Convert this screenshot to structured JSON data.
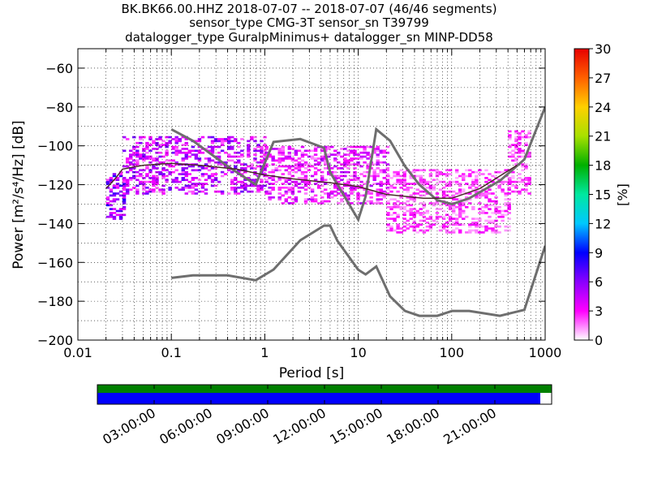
{
  "chart_data": {
    "type": "heatmap",
    "title_lines": [
      "BK.BK66.00.HHZ   2018-07-07 -- 2018-07-07  (46/46 segments)",
      "sensor_type CMG-3T sensor_sn T39799",
      "datalogger_type GuralpMinimus+ datalogger_sn MINP-DD58"
    ],
    "xlabel": "Period [s]",
    "ylabel": "Power [m²/s⁴/Hz] [dB]",
    "x_scale": "log",
    "xlim": [
      0.01,
      1000
    ],
    "ylim": [
      -200,
      -50
    ],
    "x_ticks": [
      {
        "value": 0.01,
        "label": "0.01"
      },
      {
        "value": 0.1,
        "label": "0.1"
      },
      {
        "value": 1,
        "label": "1"
      },
      {
        "value": 10,
        "label": "10"
      },
      {
        "value": 100,
        "label": "100"
      },
      {
        "value": 1000,
        "label": "1000"
      }
    ],
    "y_ticks": [
      -60,
      -80,
      -100,
      -120,
      -140,
      -160,
      -180,
      -200
    ],
    "grid": true,
    "colorbar": {
      "label": "[%]",
      "range": [
        0,
        30
      ],
      "ticks": [
        0,
        3,
        6,
        9,
        12,
        15,
        18,
        21,
        24,
        27,
        30
      ],
      "colors": [
        "#ffffff",
        "#ff00ff",
        "#8a00ff",
        "#0000ff",
        "#00c8ff",
        "#00e8a0",
        "#00b000",
        "#a8e000",
        "#ffd000",
        "#ff6000",
        "#e80000"
      ]
    },
    "models": [
      {
        "name": "high noise model",
        "points": [
          [
            0.1,
            -91.5
          ],
          [
            0.17,
            -97.4
          ],
          [
            0.4,
            -110.5
          ],
          [
            0.8,
            -120
          ],
          [
            1.24,
            -98
          ],
          [
            2.4,
            -96.5
          ],
          [
            4.3,
            -101
          ],
          [
            5,
            -113.5
          ],
          [
            6,
            -120
          ],
          [
            10,
            -138
          ],
          [
            12,
            -126
          ],
          [
            15.6,
            -91.5
          ],
          [
            21.9,
            -97.4
          ],
          [
            31.6,
            -110.5
          ],
          [
            45,
            -120
          ],
          [
            70,
            -128
          ],
          [
            101,
            -130
          ],
          [
            154,
            -127
          ],
          [
            328,
            -118
          ],
          [
            600,
            -107
          ],
          [
            10000,
            -80
          ]
        ]
      },
      {
        "name": "low noise model",
        "points": [
          [
            0.1,
            -168
          ],
          [
            0.17,
            -166.7
          ],
          [
            0.4,
            -166.7
          ],
          [
            0.8,
            -169.2
          ],
          [
            1.24,
            -163.7
          ],
          [
            2.4,
            -148.6
          ],
          [
            4.3,
            -141.1
          ],
          [
            5,
            -141.1
          ],
          [
            6,
            -149
          ],
          [
            10,
            -163.8
          ],
          [
            12,
            -166.2
          ],
          [
            15.6,
            -162.1
          ],
          [
            21.9,
            -177.5
          ],
          [
            31.6,
            -185
          ],
          [
            45,
            -187.5
          ],
          [
            70,
            -187.5
          ],
          [
            101,
            -185
          ],
          [
            154,
            -185
          ],
          [
            328,
            -187.5
          ],
          [
            600,
            -184.4
          ],
          [
            10000,
            -151.5
          ]
        ]
      },
      {
        "name": "mode",
        "points": [
          [
            0.02,
            -122
          ],
          [
            0.025,
            -117
          ],
          [
            0.03,
            -112
          ],
          [
            0.05,
            -110
          ],
          [
            0.1,
            -109
          ],
          [
            0.2,
            -110
          ],
          [
            0.5,
            -112
          ],
          [
            1,
            -115
          ],
          [
            2,
            -117
          ],
          [
            5,
            -119
          ],
          [
            10,
            -121
          ],
          [
            20,
            -125
          ],
          [
            50,
            -127
          ],
          [
            100,
            -127
          ],
          [
            200,
            -122
          ],
          [
            500,
            -110
          ]
        ]
      }
    ],
    "psd_density": [
      {
        "period_range": [
          0.02,
          0.03
        ],
        "db_range": [
          -138,
          -112
        ],
        "percent": 5
      },
      {
        "period_range": [
          0.03,
          1.0
        ],
        "db_range": [
          -125,
          -95
        ],
        "percent": 4
      },
      {
        "period_range": [
          1.0,
          20
        ],
        "db_range": [
          -130,
          -100
        ],
        "percent": 3
      },
      {
        "period_range": [
          20,
          400
        ],
        "db_range": [
          -145,
          -112
        ],
        "percent": 2
      },
      {
        "period_range": [
          400,
          650
        ],
        "db_range": [
          -125,
          -92
        ],
        "percent": 2
      }
    ],
    "data_availability": {
      "time_ticks": [
        "03:00:00",
        "06:00:00",
        "09:00:00",
        "12:00:00",
        "15:00:00",
        "18:00:00",
        "21:00:00"
      ],
      "coverage_fraction": 0.975,
      "colors": {
        "available": "#0000ff",
        "used": "#008000"
      }
    }
  }
}
